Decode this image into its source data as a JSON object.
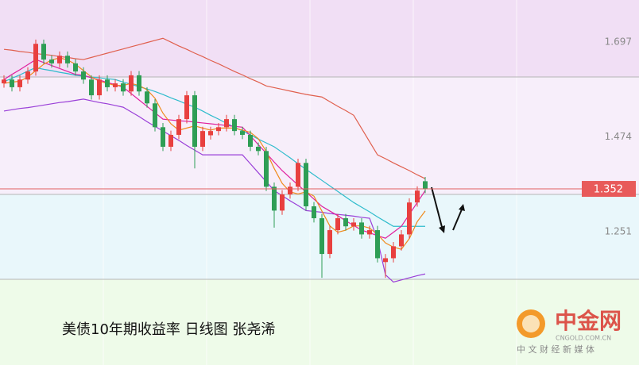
{
  "chart_data": {
    "type": "candlestick",
    "title": "美债10年期收益率 日线图 张尧浠",
    "up_color": "#e8403f",
    "down_color": "#2e9e55",
    "open": [
      1.6,
      1.609,
      1.591,
      1.609,
      1.628,
      1.693,
      1.656,
      1.647,
      1.665,
      1.647,
      1.628,
      1.609,
      1.572,
      1.609,
      1.591,
      1.6,
      1.581,
      1.619,
      1.581,
      1.553,
      1.497,
      1.451,
      1.479,
      1.516,
      1.572,
      1.451,
      1.478,
      1.488,
      1.497,
      1.516,
      1.488,
      1.479,
      1.451,
      1.441,
      1.357,
      1.301,
      1.339,
      1.357,
      1.413,
      1.311,
      1.283,
      1.199,
      1.255,
      1.283,
      1.264,
      1.273,
      1.245,
      1.255,
      1.18,
      1.189,
      1.217,
      1.245,
      1.32,
      1.37
    ],
    "high": [
      1.619,
      1.619,
      1.619,
      1.638,
      1.703,
      1.703,
      1.666,
      1.675,
      1.675,
      1.657,
      1.638,
      1.619,
      1.619,
      1.619,
      1.61,
      1.61,
      1.629,
      1.629,
      1.591,
      1.563,
      1.507,
      1.489,
      1.526,
      1.582,
      1.582,
      1.498,
      1.498,
      1.507,
      1.526,
      1.526,
      1.498,
      1.489,
      1.461,
      1.451,
      1.367,
      1.349,
      1.367,
      1.423,
      1.423,
      1.321,
      1.293,
      1.265,
      1.293,
      1.293,
      1.283,
      1.283,
      1.265,
      1.265,
      1.199,
      1.227,
      1.255,
      1.33,
      1.358,
      1.38
    ],
    "low": [
      1.59,
      1.581,
      1.581,
      1.599,
      1.618,
      1.646,
      1.637,
      1.637,
      1.637,
      1.618,
      1.599,
      1.562,
      1.562,
      1.581,
      1.581,
      1.571,
      1.571,
      1.571,
      1.543,
      1.487,
      1.441,
      1.441,
      1.469,
      1.506,
      1.4,
      1.441,
      1.468,
      1.478,
      1.487,
      1.478,
      1.469,
      1.441,
      1.431,
      1.347,
      1.261,
      1.291,
      1.329,
      1.347,
      1.301,
      1.273,
      1.143,
      1.189,
      1.245,
      1.254,
      1.254,
      1.235,
      1.235,
      1.179,
      1.143,
      1.179,
      1.207,
      1.235,
      1.31,
      1.342
    ],
    "close": [
      1.609,
      1.591,
      1.609,
      1.628,
      1.693,
      1.656,
      1.647,
      1.665,
      1.647,
      1.628,
      1.609,
      1.572,
      1.609,
      1.591,
      1.6,
      1.581,
      1.619,
      1.581,
      1.553,
      1.497,
      1.451,
      1.479,
      1.516,
      1.572,
      1.451,
      1.488,
      1.488,
      1.497,
      1.516,
      1.488,
      1.479,
      1.451,
      1.441,
      1.357,
      1.301,
      1.339,
      1.357,
      1.413,
      1.311,
      1.283,
      1.199,
      1.255,
      1.283,
      1.264,
      1.273,
      1.245,
      1.255,
      1.189,
      1.189,
      1.217,
      1.245,
      1.32,
      1.348,
      1.352
    ],
    "series": [
      {
        "color": "#e0604e",
        "values": [
          1.68,
          1.678,
          1.675,
          1.673,
          1.67,
          1.668,
          1.666,
          1.663,
          1.661,
          1.658,
          1.656,
          1.661,
          1.666,
          1.671,
          1.676,
          1.681,
          1.686,
          1.691,
          1.696,
          1.701,
          1.706,
          1.697,
          1.688,
          1.68,
          1.671,
          1.663,
          1.654,
          1.646,
          1.637,
          1.628,
          1.62,
          1.611,
          1.603,
          1.594,
          1.59,
          1.586,
          1.582,
          1.578,
          1.574,
          1.571,
          1.568,
          1.557,
          1.546,
          1.536,
          1.525,
          1.494,
          1.463,
          1.432,
          1.423,
          1.413,
          1.404,
          1.395,
          1.385,
          1.376
        ]
      },
      {
        "color": "#9a3fd8",
        "values": [
          1.535,
          1.538,
          1.541,
          1.543,
          1.546,
          1.549,
          1.552,
          1.555,
          1.557,
          1.56,
          1.563,
          1.559,
          1.555,
          1.552,
          1.548,
          1.544,
          1.533,
          1.522,
          1.51,
          1.499,
          1.488,
          1.477,
          1.466,
          1.454,
          1.443,
          1.432,
          1.432,
          1.432,
          1.432,
          1.432,
          1.432,
          1.411,
          1.39,
          1.369,
          1.348,
          1.336,
          1.324,
          1.313,
          1.301,
          1.299,
          1.297,
          1.294,
          1.292,
          1.29,
          1.288,
          1.285,
          1.283,
          1.233,
          1.15,
          1.133,
          1.138,
          1.143,
          1.148,
          1.152
        ]
      },
      {
        "color": "#2fbccc",
        "values": [
          1.604,
          1.612,
          1.62,
          1.629,
          1.637,
          1.633,
          1.63,
          1.626,
          1.623,
          1.619,
          1.617,
          1.615,
          1.613,
          1.611,
          1.609,
          1.603,
          1.598,
          1.592,
          1.587,
          1.581,
          1.574,
          1.566,
          1.559,
          1.551,
          1.544,
          1.535,
          1.525,
          1.516,
          1.506,
          1.497,
          1.488,
          1.479,
          1.469,
          1.46,
          1.451,
          1.438,
          1.425,
          1.411,
          1.398,
          1.385,
          1.372,
          1.359,
          1.346,
          1.333,
          1.32,
          1.309,
          1.298,
          1.286,
          1.275,
          1.264,
          1.264,
          1.264,
          1.264,
          1.264
        ]
      },
      {
        "color": "#e0209e",
        "values": [
          1.609,
          1.621,
          1.632,
          1.644,
          1.656,
          1.649,
          1.642,
          1.635,
          1.628,
          1.621,
          1.619,
          1.613,
          1.608,
          1.602,
          1.597,
          1.591,
          1.576,
          1.561,
          1.546,
          1.531,
          1.516,
          1.514,
          1.512,
          1.511,
          1.509,
          1.507,
          1.505,
          1.503,
          1.501,
          1.499,
          1.497,
          1.477,
          1.456,
          1.436,
          1.415,
          1.395,
          1.378,
          1.361,
          1.345,
          1.328,
          1.311,
          1.3,
          1.289,
          1.277,
          1.266,
          1.255,
          1.249,
          1.242,
          1.236,
          1.25,
          1.264,
          1.292,
          1.32,
          1.348
        ]
      },
      {
        "color": "#f08a1c",
        "values": [
          1.6,
          1.603,
          1.605,
          1.615,
          1.63,
          1.645,
          1.655,
          1.66,
          1.655,
          1.645,
          1.63,
          1.615,
          1.605,
          1.6,
          1.595,
          1.595,
          1.6,
          1.595,
          1.585,
          1.565,
          1.53,
          1.505,
          1.49,
          1.495,
          1.5,
          1.495,
          1.49,
          1.495,
          1.495,
          1.495,
          1.49,
          1.485,
          1.47,
          1.44,
          1.4,
          1.365,
          1.345,
          1.34,
          1.345,
          1.335,
          1.3,
          1.265,
          1.25,
          1.255,
          1.265,
          1.265,
          1.26,
          1.245,
          1.225,
          1.215,
          1.21,
          1.235,
          1.275,
          1.3
        ]
      }
    ],
    "ylim": [
      0.938,
      1.796
    ],
    "yticks": [
      1.697,
      1.474,
      1.251
    ],
    "last_price": 1.352,
    "watermark": {
      "brand": "中金网",
      "domain": "CNGOLD.COM.CN",
      "slogan": "中 文 财 经 新 媒 体"
    }
  }
}
